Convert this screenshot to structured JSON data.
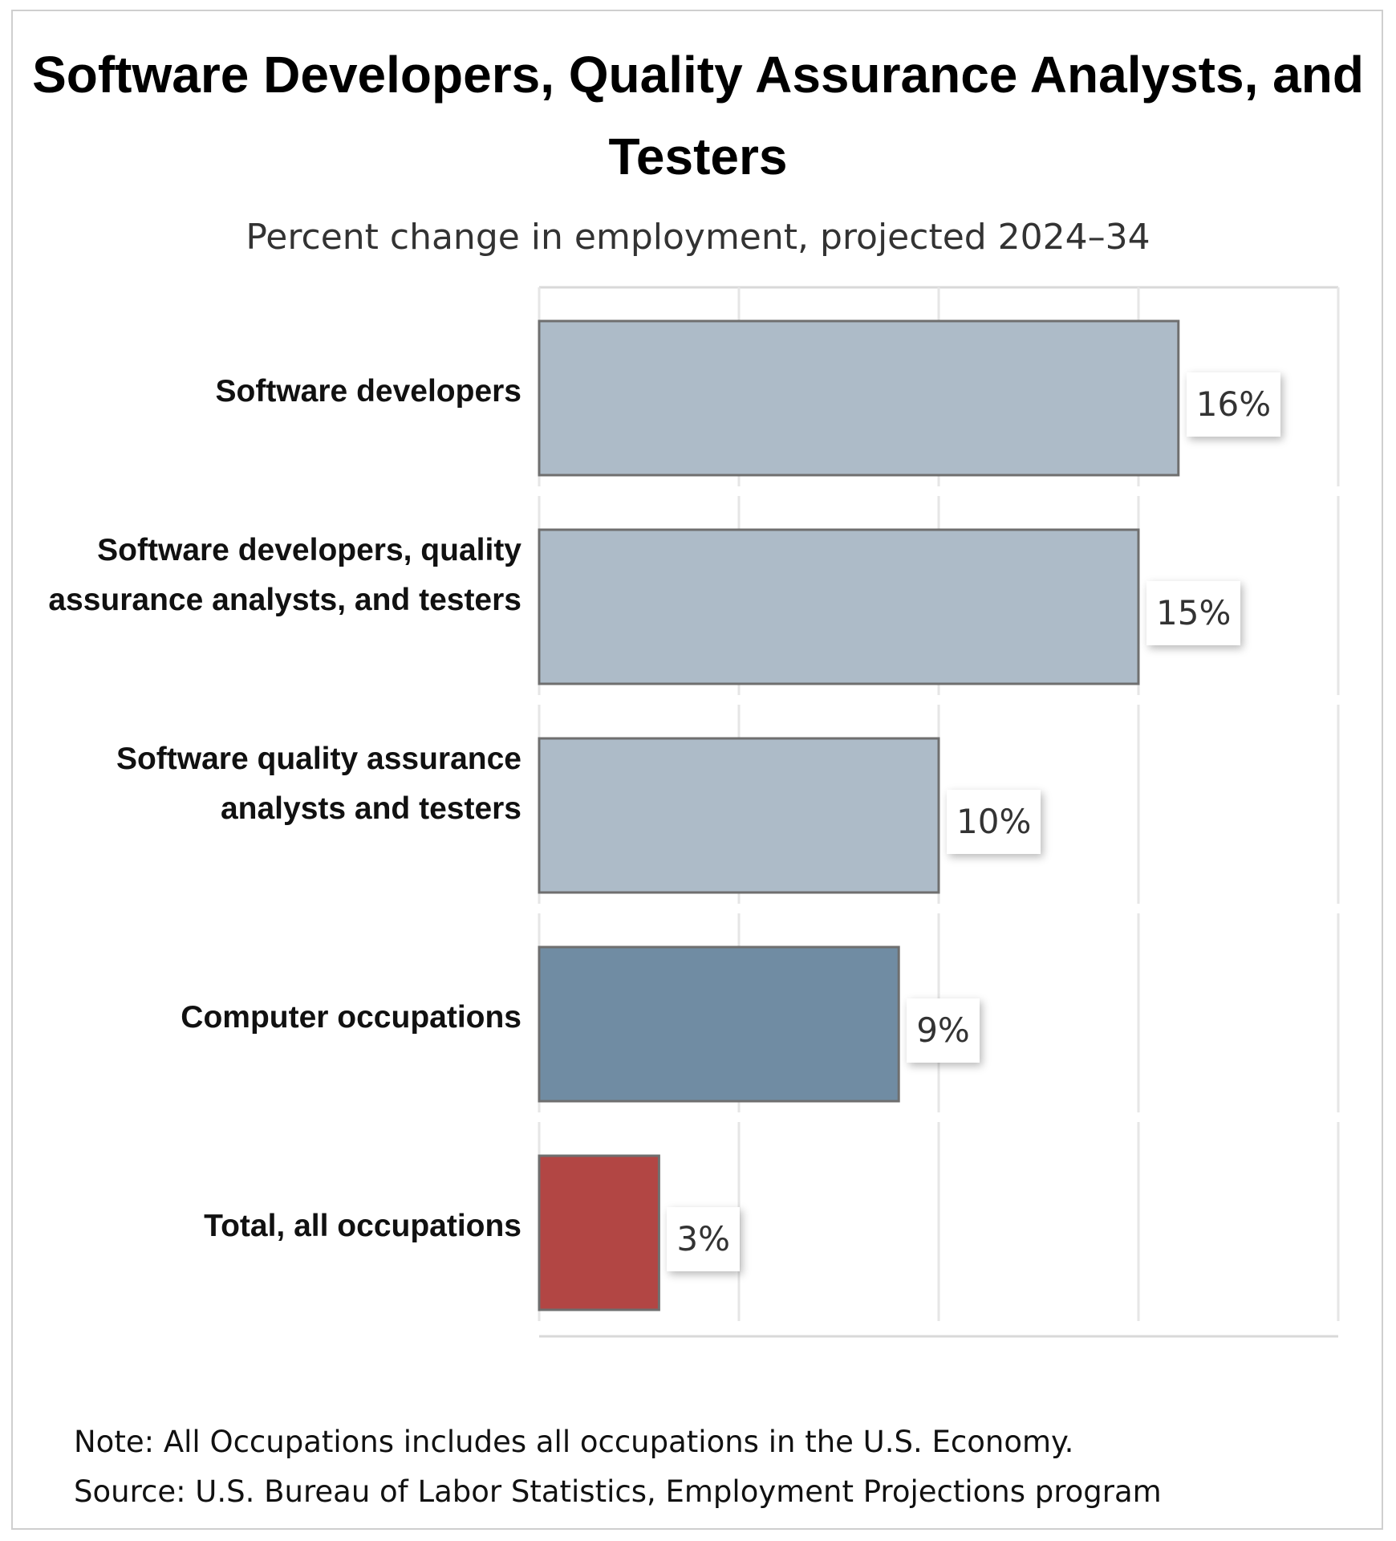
{
  "chart_data": {
    "type": "bar",
    "orientation": "horizontal",
    "title": "Software Developers, Quality Assurance Analysts, and Testers",
    "subtitle": "Percent change in employment, projected 2024–34",
    "categories": [
      "Software developers",
      "Software developers, quality assurance analysts, and testers",
      "Software quality assurance analysts and testers",
      "Computer occupations",
      "Total, all occupations"
    ],
    "values": [
      16,
      15,
      10,
      9,
      3
    ],
    "value_labels": [
      "16%",
      "15%",
      "10%",
      "9%",
      "3%"
    ],
    "bar_colors": [
      "#adbbc8",
      "#adbbc8",
      "#adbbc8",
      "#708ca3",
      "#b24644"
    ],
    "unit": "%",
    "xlim": [
      0,
      20
    ],
    "xticks": [
      0,
      5,
      10,
      15,
      20
    ],
    "grid": true,
    "legend": "none",
    "xlabel": "",
    "ylabel": ""
  },
  "footer": {
    "note": "Note: All Occupations includes all occupations in the U.S. Economy.",
    "source": "Source: U.S. Bureau of Labor Statistics, Employment Projections program"
  }
}
